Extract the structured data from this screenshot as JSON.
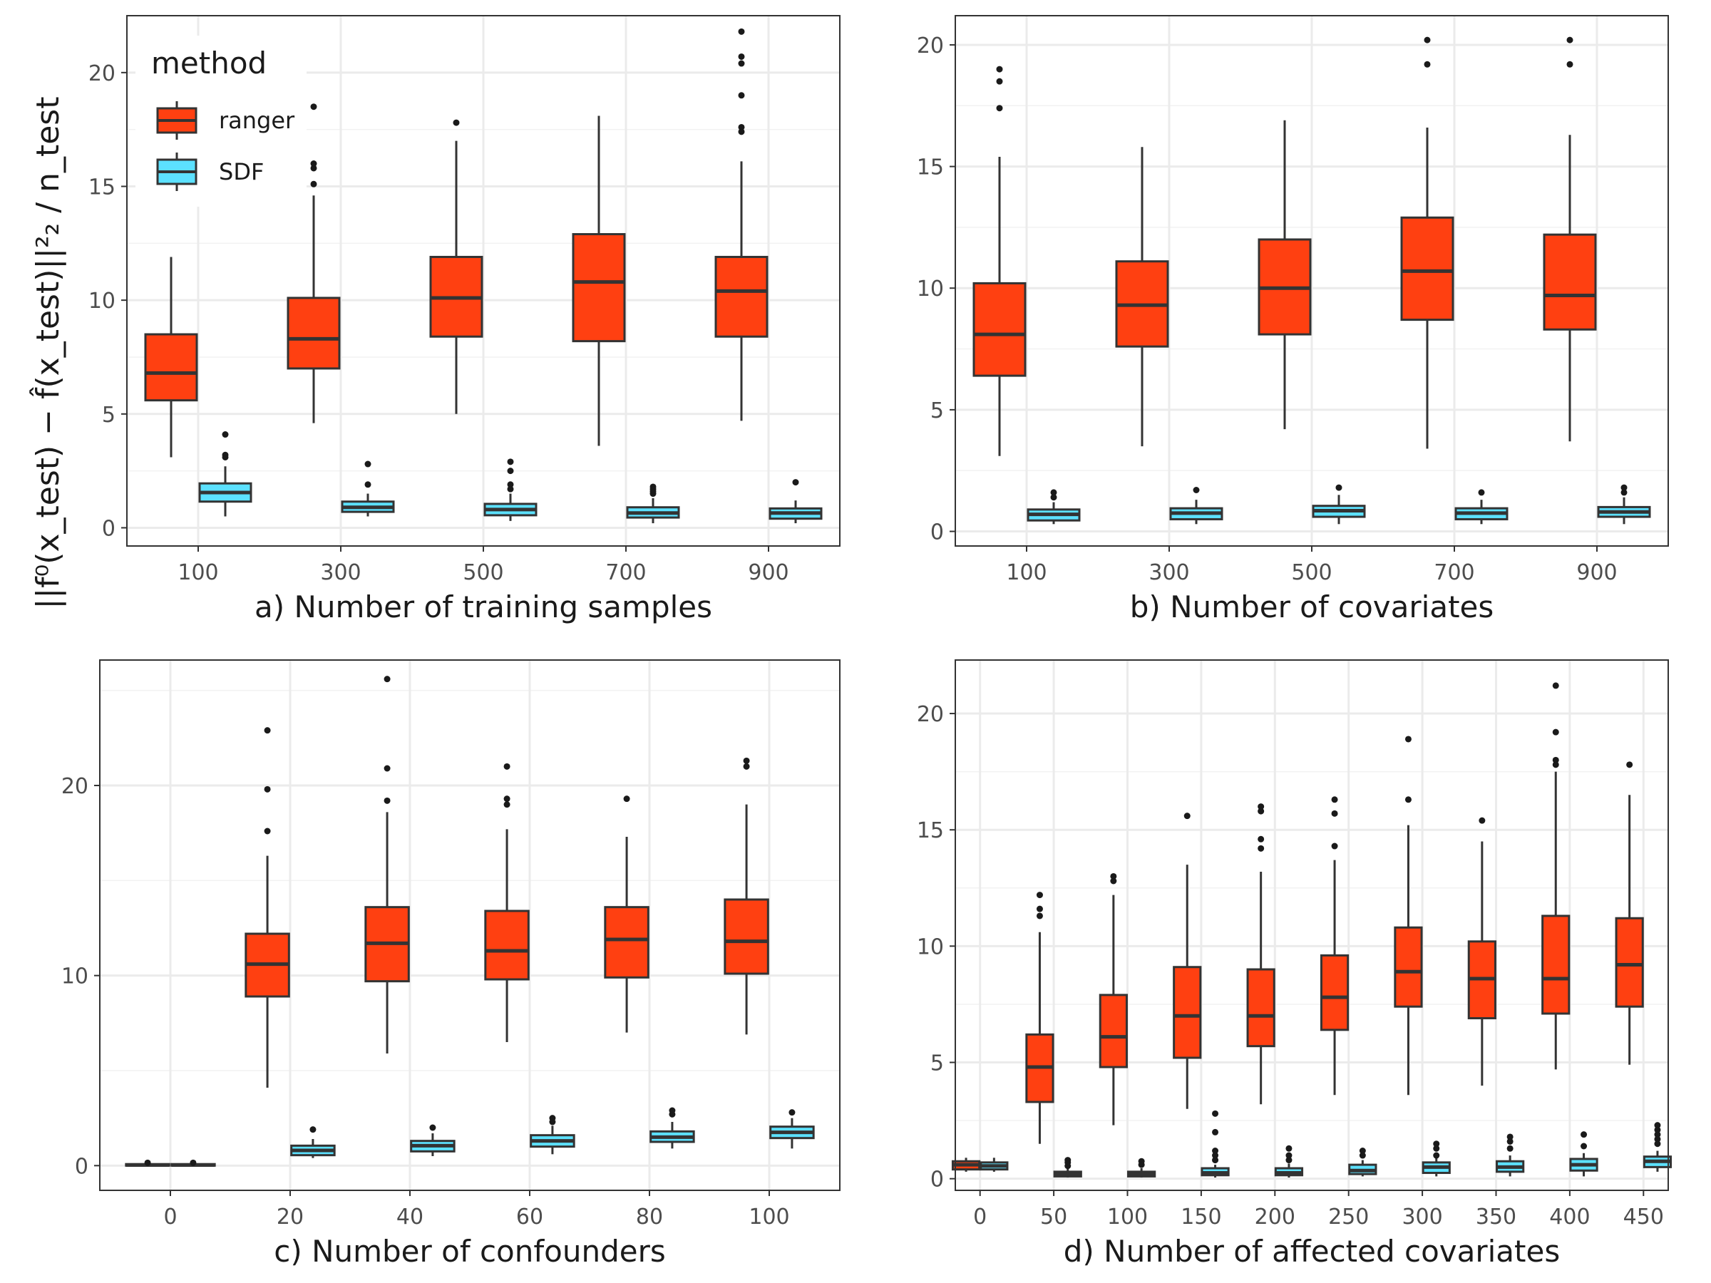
{
  "ylabel": "||f⁰(x_test) − f̂(x_test)||²₂ / n_test",
  "legend": {
    "title": "method",
    "entries": [
      {
        "name": "ranger",
        "color": "#FF4011"
      },
      {
        "name": "SDF",
        "color": "#5CE1FF"
      }
    ]
  },
  "chart_data": [
    {
      "type": "box",
      "xlabel": "a) Number of training samples",
      "categories": [
        "100",
        "300",
        "500",
        "700",
        "900"
      ],
      "ylim": [
        -0.8,
        22.5
      ],
      "yticks": [
        0,
        5,
        10,
        15,
        20
      ],
      "series": [
        {
          "name": "ranger",
          "color": "#FF4011",
          "boxes": [
            {
              "min": 3.1,
              "q1": 5.6,
              "median": 6.8,
              "q3": 8.5,
              "max": 11.9,
              "outliers": []
            },
            {
              "min": 4.6,
              "q1": 7.0,
              "median": 8.3,
              "q3": 10.1,
              "max": 14.6,
              "outliers": [
                15.1,
                15.8,
                16.0,
                18.5
              ]
            },
            {
              "min": 5.0,
              "q1": 8.4,
              "median": 10.1,
              "q3": 11.9,
              "max": 17.0,
              "outliers": [
                17.8
              ]
            },
            {
              "min": 3.6,
              "q1": 8.2,
              "median": 10.8,
              "q3": 12.9,
              "max": 18.1,
              "outliers": []
            },
            {
              "min": 4.7,
              "q1": 8.4,
              "median": 10.4,
              "q3": 11.9,
              "max": 16.1,
              "outliers": [
                17.4,
                17.6,
                19.0,
                20.4,
                20.7,
                21.8
              ]
            }
          ]
        },
        {
          "name": "SDF",
          "color": "#5CE1FF",
          "boxes": [
            {
              "min": 0.5,
              "q1": 1.15,
              "median": 1.55,
              "q3": 1.95,
              "max": 2.7,
              "outliers": [
                3.1,
                3.2,
                4.1
              ]
            },
            {
              "min": 0.5,
              "q1": 0.7,
              "median": 0.9,
              "q3": 1.15,
              "max": 1.5,
              "outliers": [
                1.9,
                2.8
              ]
            },
            {
              "min": 0.3,
              "q1": 0.55,
              "median": 0.8,
              "q3": 1.05,
              "max": 1.5,
              "outliers": [
                1.7,
                1.9,
                2.5,
                2.9
              ]
            },
            {
              "min": 0.2,
              "q1": 0.45,
              "median": 0.65,
              "q3": 0.9,
              "max": 1.3,
              "outliers": [
                1.5,
                1.6,
                1.7,
                1.8
              ]
            },
            {
              "min": 0.2,
              "q1": 0.4,
              "median": 0.65,
              "q3": 0.85,
              "max": 1.2,
              "outliers": [
                2.0
              ]
            }
          ]
        }
      ]
    },
    {
      "type": "box",
      "xlabel": "b) Number of covariates",
      "categories": [
        "100",
        "300",
        "500",
        "700",
        "900"
      ],
      "ylim": [
        -0.6,
        21.2
      ],
      "yticks": [
        0,
        5,
        10,
        15,
        20
      ],
      "series": [
        {
          "name": "ranger",
          "color": "#FF4011",
          "boxes": [
            {
              "min": 3.1,
              "q1": 6.4,
              "median": 8.1,
              "q3": 10.2,
              "max": 15.4,
              "outliers": [
                17.4,
                18.5,
                19.0
              ]
            },
            {
              "min": 3.5,
              "q1": 7.6,
              "median": 9.3,
              "q3": 11.1,
              "max": 15.8,
              "outliers": []
            },
            {
              "min": 4.2,
              "q1": 8.1,
              "median": 10.0,
              "q3": 12.0,
              "max": 16.9,
              "outliers": []
            },
            {
              "min": 3.4,
              "q1": 8.7,
              "median": 10.7,
              "q3": 12.9,
              "max": 16.6,
              "outliers": [
                19.2,
                20.2
              ]
            },
            {
              "min": 3.7,
              "q1": 8.3,
              "median": 9.7,
              "q3": 12.2,
              "max": 16.3,
              "outliers": [
                19.2,
                20.2
              ]
            }
          ]
        },
        {
          "name": "SDF",
          "color": "#5CE1FF",
          "boxes": [
            {
              "min": 0.3,
              "q1": 0.45,
              "median": 0.7,
              "q3": 0.9,
              "max": 1.2,
              "outliers": [
                1.4,
                1.6
              ]
            },
            {
              "min": 0.3,
              "q1": 0.5,
              "median": 0.75,
              "q3": 0.95,
              "max": 1.3,
              "outliers": [
                1.7
              ]
            },
            {
              "min": 0.3,
              "q1": 0.6,
              "median": 0.85,
              "q3": 1.05,
              "max": 1.5,
              "outliers": [
                1.8
              ]
            },
            {
              "min": 0.3,
              "q1": 0.5,
              "median": 0.75,
              "q3": 0.95,
              "max": 1.3,
              "outliers": [
                1.6
              ]
            },
            {
              "min": 0.3,
              "q1": 0.6,
              "median": 0.8,
              "q3": 1.0,
              "max": 1.4,
              "outliers": [
                1.6,
                1.8
              ]
            }
          ]
        }
      ]
    },
    {
      "type": "box",
      "xlabel": "c) Number of confounders",
      "categories": [
        "0",
        "20",
        "40",
        "60",
        "80",
        "100"
      ],
      "ylim": [
        -1.3,
        26.6
      ],
      "yticks": [
        0,
        10,
        20
      ],
      "series": [
        {
          "name": "ranger",
          "color": "#FF4011",
          "boxes": [
            {
              "min": 0.0,
              "q1": 0.0,
              "median": 0.03,
              "q3": 0.08,
              "max": 0.1,
              "outliers": [
                0.15
              ]
            },
            {
              "min": 4.1,
              "q1": 8.9,
              "median": 10.6,
              "q3": 12.2,
              "max": 16.3,
              "outliers": [
                17.6,
                19.8,
                22.9
              ]
            },
            {
              "min": 5.9,
              "q1": 9.7,
              "median": 11.7,
              "q3": 13.6,
              "max": 18.6,
              "outliers": [
                19.2,
                20.9,
                25.6
              ]
            },
            {
              "min": 6.5,
              "q1": 9.8,
              "median": 11.3,
              "q3": 13.4,
              "max": 17.7,
              "outliers": [
                19.0,
                19.3,
                21.0
              ]
            },
            {
              "min": 7.0,
              "q1": 9.9,
              "median": 11.9,
              "q3": 13.6,
              "max": 17.3,
              "outliers": [
                19.3
              ]
            },
            {
              "min": 6.9,
              "q1": 10.1,
              "median": 11.8,
              "q3": 14.0,
              "max": 19.0,
              "outliers": [
                21.0,
                21.3
              ]
            }
          ]
        },
        {
          "name": "SDF",
          "color": "#5CE1FF",
          "boxes": [
            {
              "min": 0.0,
              "q1": 0.0,
              "median": 0.03,
              "q3": 0.08,
              "max": 0.1,
              "outliers": [
                0.15
              ]
            },
            {
              "min": 0.4,
              "q1": 0.55,
              "median": 0.8,
              "q3": 1.05,
              "max": 1.4,
              "outliers": [
                1.9
              ]
            },
            {
              "min": 0.5,
              "q1": 0.75,
              "median": 1.05,
              "q3": 1.3,
              "max": 1.7,
              "outliers": [
                2.0
              ]
            },
            {
              "min": 0.6,
              "q1": 1.0,
              "median": 1.3,
              "q3": 1.6,
              "max": 2.1,
              "outliers": [
                2.3,
                2.5
              ]
            },
            {
              "min": 0.9,
              "q1": 1.25,
              "median": 1.5,
              "q3": 1.8,
              "max": 2.3,
              "outliers": [
                2.7,
                2.9
              ]
            },
            {
              "min": 0.9,
              "q1": 1.45,
              "median": 1.75,
              "q3": 2.05,
              "max": 2.5,
              "outliers": [
                2.8
              ]
            }
          ]
        }
      ]
    },
    {
      "type": "box",
      "xlabel": "d) Number of affected covariates",
      "categories": [
        "0",
        "50",
        "100",
        "150",
        "200",
        "250",
        "300",
        "350",
        "400",
        "450"
      ],
      "ylim": [
        -0.5,
        22.3
      ],
      "yticks": [
        0,
        5,
        10,
        15,
        20
      ],
      "series": [
        {
          "name": "ranger",
          "color": "#FF4011",
          "boxes": [
            {
              "min": 0.3,
              "q1": 0.4,
              "median": 0.6,
              "q3": 0.75,
              "max": 0.9,
              "outliers": []
            },
            {
              "min": 1.5,
              "q1": 3.3,
              "median": 4.8,
              "q3": 6.2,
              "max": 10.6,
              "outliers": [
                11.3,
                11.6,
                12.2
              ]
            },
            {
              "min": 2.3,
              "q1": 4.8,
              "median": 6.1,
              "q3": 7.9,
              "max": 12.2,
              "outliers": [
                12.8,
                13.0
              ]
            },
            {
              "min": 3.0,
              "q1": 5.2,
              "median": 7.0,
              "q3": 9.1,
              "max": 13.5,
              "outliers": [
                15.6
              ]
            },
            {
              "min": 3.2,
              "q1": 5.7,
              "median": 7.0,
              "q3": 9.0,
              "max": 13.2,
              "outliers": [
                14.2,
                14.6,
                15.8,
                16.0
              ]
            },
            {
              "min": 3.6,
              "q1": 6.4,
              "median": 7.8,
              "q3": 9.6,
              "max": 13.7,
              "outliers": [
                14.3,
                15.7,
                16.3
              ]
            },
            {
              "min": 3.6,
              "q1": 7.4,
              "median": 8.9,
              "q3": 10.8,
              "max": 15.2,
              "outliers": [
                16.3,
                18.9
              ]
            },
            {
              "min": 4.0,
              "q1": 6.9,
              "median": 8.6,
              "q3": 10.2,
              "max": 14.5,
              "outliers": [
                15.4
              ]
            },
            {
              "min": 4.7,
              "q1": 7.1,
              "median": 8.6,
              "q3": 11.3,
              "max": 17.5,
              "outliers": [
                17.8,
                18.0,
                19.2,
                21.2
              ]
            },
            {
              "min": 4.9,
              "q1": 7.4,
              "median": 9.2,
              "q3": 11.2,
              "max": 16.5,
              "outliers": [
                17.8
              ]
            }
          ]
        },
        {
          "name": "SDF",
          "color": "#5CE1FF",
          "boxes": [
            {
              "min": 0.3,
              "q1": 0.4,
              "median": 0.55,
              "q3": 0.7,
              "max": 0.9,
              "outliers": []
            },
            {
              "min": 0.05,
              "q1": 0.1,
              "median": 0.2,
              "q3": 0.3,
              "max": 0.45,
              "outliers": [
                0.55,
                0.7,
                0.8
              ]
            },
            {
              "min": 0.05,
              "q1": 0.1,
              "median": 0.2,
              "q3": 0.3,
              "max": 0.45,
              "outliers": [
                0.6,
                0.75
              ]
            },
            {
              "min": 0.05,
              "q1": 0.15,
              "median": 0.25,
              "q3": 0.45,
              "max": 0.6,
              "outliers": [
                0.8,
                1.0,
                1.2,
                2.0,
                2.8
              ]
            },
            {
              "min": 0.05,
              "q1": 0.15,
              "median": 0.25,
              "q3": 0.45,
              "max": 0.65,
              "outliers": [
                0.8,
                1.0,
                1.3
              ]
            },
            {
              "min": 0.1,
              "q1": 0.2,
              "median": 0.35,
              "q3": 0.6,
              "max": 0.8,
              "outliers": [
                1.0,
                1.2
              ]
            },
            {
              "min": 0.1,
              "q1": 0.25,
              "median": 0.5,
              "q3": 0.7,
              "max": 0.9,
              "outliers": [
                1.0,
                1.3,
                1.5
              ]
            },
            {
              "min": 0.1,
              "q1": 0.3,
              "median": 0.5,
              "q3": 0.75,
              "max": 1.0,
              "outliers": [
                1.3,
                1.6,
                1.8
              ]
            },
            {
              "min": 0.1,
              "q1": 0.35,
              "median": 0.6,
              "q3": 0.85,
              "max": 1.1,
              "outliers": [
                1.4,
                1.9
              ]
            },
            {
              "min": 0.3,
              "q1": 0.5,
              "median": 0.75,
              "q3": 0.95,
              "max": 1.2,
              "outliers": [
                1.5,
                1.7,
                1.9,
                2.1,
                2.3
              ]
            }
          ]
        }
      ]
    }
  ]
}
